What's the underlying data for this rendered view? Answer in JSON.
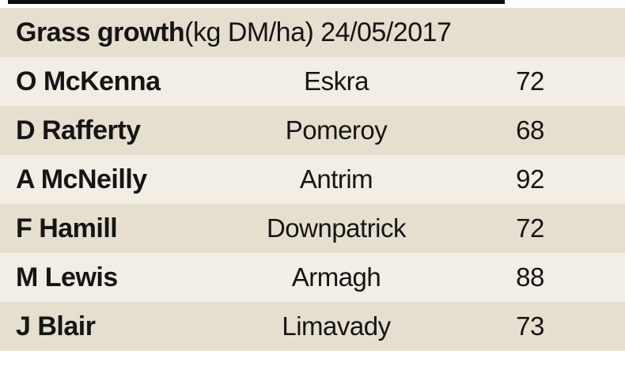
{
  "chart_data": {
    "type": "table",
    "title": "Grass growth (kg DM/ha) 24/05/2017",
    "title_bold": "Grass growth",
    "title_rest": " (kg DM/ha) 24/05/2017",
    "unit": "kg DM/ha",
    "date": "24/05/2017",
    "columns": [
      "name",
      "location",
      "value"
    ],
    "rows": [
      {
        "name": "O McKenna",
        "location": "Eskra",
        "value": "72"
      },
      {
        "name": "D Rafferty",
        "location": "Pomeroy",
        "value": "68"
      },
      {
        "name": "A McNeilly",
        "location": "Antrim",
        "value": "92"
      },
      {
        "name": "F Hamill",
        "location": "Downpatrick",
        "value": "72"
      },
      {
        "name": "M Lewis",
        "location": "Armagh",
        "value": "88"
      },
      {
        "name": "J Blair",
        "location": "Limavady",
        "value": "73"
      }
    ]
  },
  "colors": {
    "row_beige": "#e6dfd0",
    "row_light": "#f2eee5",
    "top_rule": "#0d0d0d",
    "text": "#151515",
    "background": "#ffffff"
  }
}
